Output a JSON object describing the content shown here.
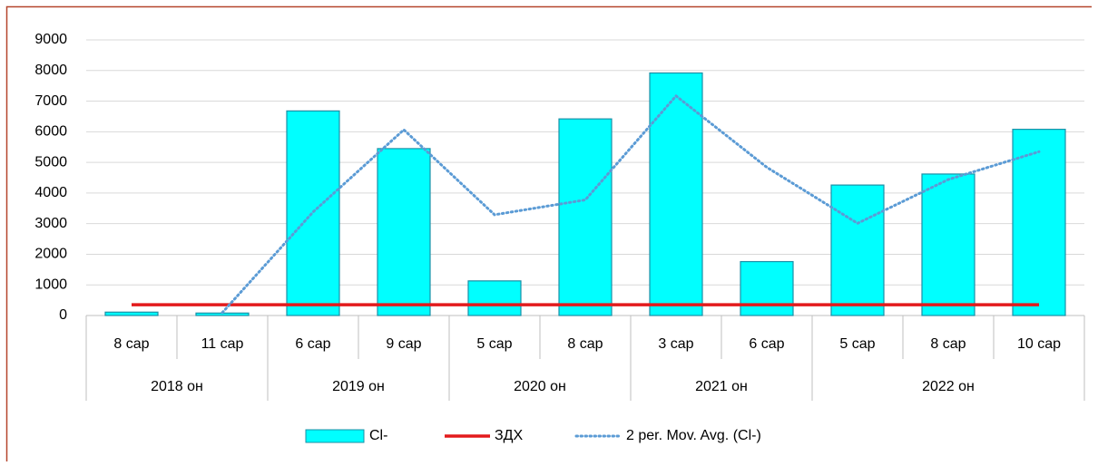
{
  "chart_data": {
    "type": "bar",
    "categories": [
      "8 сар",
      "11 сар",
      "6 сар",
      "9 сар",
      "5 сар",
      "8 сар",
      "3 сар",
      "6 сар",
      "5 сар",
      "8 сар",
      "10 сар"
    ],
    "groups": [
      {
        "name": "2018 он",
        "count": 2
      },
      {
        "name": "2019 он",
        "count": 2
      },
      {
        "name": "2020 он",
        "count": 2
      },
      {
        "name": "2021 он",
        "count": 2
      },
      {
        "name": "2022 он",
        "count": 3
      }
    ],
    "series": [
      {
        "name": "Cl-",
        "type": "bar",
        "color": "#00ffff",
        "values": [
          110,
          80,
          6680,
          5450,
          1130,
          6420,
          7920,
          1760,
          4260,
          4620,
          6080
        ]
      },
      {
        "name": "ЗДХ",
        "type": "line",
        "color": "#e31a1c",
        "values": [
          350,
          350,
          350,
          350,
          350,
          350,
          350,
          350,
          350,
          350,
          350
        ]
      },
      {
        "name": "2 per. Mov. Avg. (Cl-)",
        "type": "dotted",
        "color": "#5b9bd5",
        "values": [
          null,
          95,
          3380,
          6065,
          3290,
          3775,
          7170,
          4840,
          3010,
          4440,
          5350
        ]
      }
    ],
    "ylim": [
      0,
      9000
    ],
    "yticks": [
      0,
      1000,
      2000,
      3000,
      4000,
      5000,
      6000,
      7000,
      8000,
      9000
    ],
    "grid": true,
    "legend": "bottom"
  }
}
